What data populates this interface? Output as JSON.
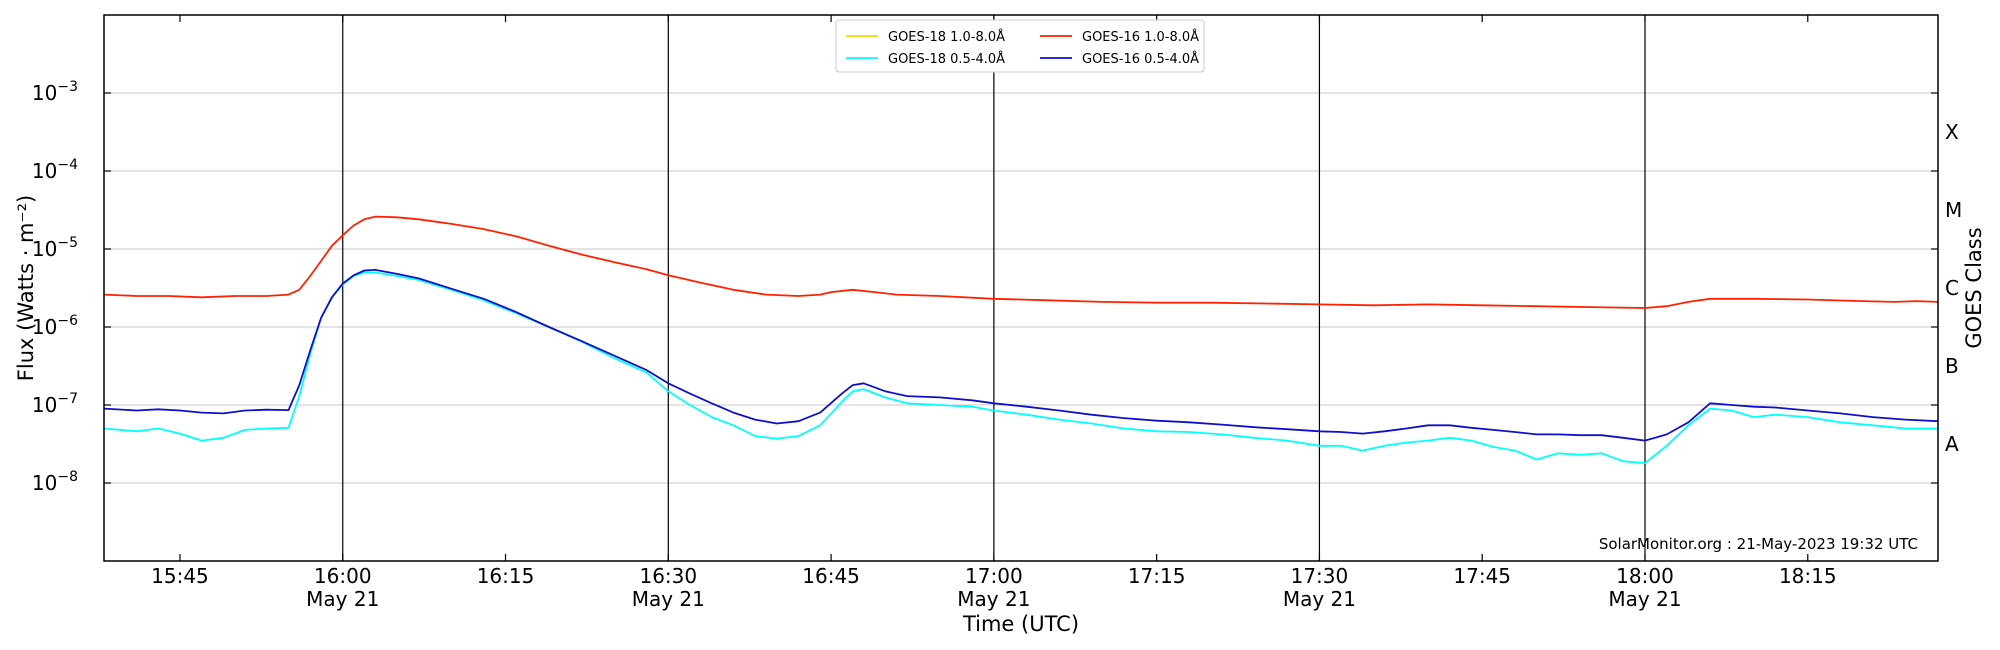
{
  "chart_data": {
    "type": "line",
    "xlabel": "Time (UTC)",
    "ylabel": "Flux (Watts · m⁻²)",
    "right_ylabel": "GOES Class",
    "credit": "SolarMonitor.org : 21-May-2023 19:32 UTC",
    "x_range": [
      "15:38",
      "18:27"
    ],
    "ylim": [
      1e-09,
      0.01
    ],
    "yscale": "log",
    "grid": "horizontal",
    "legend_position": "top-center",
    "x_ticks": [
      {
        "time": "15:45",
        "date": ""
      },
      {
        "time": "16:00",
        "date": "May 21"
      },
      {
        "time": "16:15",
        "date": ""
      },
      {
        "time": "16:30",
        "date": "May 21"
      },
      {
        "time": "16:45",
        "date": ""
      },
      {
        "time": "17:00",
        "date": "May 21"
      },
      {
        "time": "17:15",
        "date": ""
      },
      {
        "time": "17:30",
        "date": "May 21"
      },
      {
        "time": "17:45",
        "date": ""
      },
      {
        "time": "18:00",
        "date": "May 21"
      },
      {
        "time": "18:15",
        "date": ""
      }
    ],
    "vertical_lines": [
      "16:00",
      "16:30",
      "17:00",
      "17:30",
      "18:00"
    ],
    "y_ticks": [
      {
        "base": "10",
        "exp": "−8",
        "value": 1e-08
      },
      {
        "base": "10",
        "exp": "−7",
        "value": 1e-07
      },
      {
        "base": "10",
        "exp": "−6",
        "value": 1e-06
      },
      {
        "base": "10",
        "exp": "−5",
        "value": 1e-05
      },
      {
        "base": "10",
        "exp": "−4",
        "value": 0.0001
      },
      {
        "base": "10",
        "exp": "−3",
        "value": 0.001
      }
    ],
    "goes_classes": [
      {
        "label": "A",
        "value": 3.16e-08
      },
      {
        "label": "B",
        "value": 3.16e-07
      },
      {
        "label": "C",
        "value": 3.16e-06
      },
      {
        "label": "M",
        "value": 3.16e-05
      },
      {
        "label": "X",
        "value": 0.000316
      }
    ],
    "series": [
      {
        "name": "GOES-18 1.0-8.0Å",
        "color": "#ffd700",
        "points": []
      },
      {
        "name": "GOES-18 0.5-4.0Å",
        "color": "#00ffff",
        "points": [
          [
            "15:38",
            5e-08
          ],
          [
            "15:41",
            4.6e-08
          ],
          [
            "15:43",
            5e-08
          ],
          [
            "15:45",
            4.3e-08
          ],
          [
            "15:47",
            3.5e-08
          ],
          [
            "15:49",
            3.8e-08
          ],
          [
            "15:51",
            4.8e-08
          ],
          [
            "15:53",
            5e-08
          ],
          [
            "15:55",
            5.1e-08
          ],
          [
            "15:56",
            1.3e-07
          ],
          [
            "15:57",
            4.5e-07
          ],
          [
            "15:58",
            1.3e-06
          ],
          [
            "15:59",
            2.4e-06
          ],
          [
            "16:00",
            3.5e-06
          ],
          [
            "16:01",
            4.5e-06
          ],
          [
            "16:02",
            5e-06
          ],
          [
            "16:03",
            5e-06
          ],
          [
            "16:05",
            4.5e-06
          ],
          [
            "16:07",
            4e-06
          ],
          [
            "16:10",
            3e-06
          ],
          [
            "16:13",
            2.2e-06
          ],
          [
            "16:16",
            1.5e-06
          ],
          [
            "16:19",
            1e-06
          ],
          [
            "16:22",
            6.5e-07
          ],
          [
            "16:25",
            4e-07
          ],
          [
            "16:28",
            2.6e-07
          ],
          [
            "16:30",
            1.5e-07
          ],
          [
            "16:32",
            1e-07
          ],
          [
            "16:34",
            7e-08
          ],
          [
            "16:36",
            5.5e-08
          ],
          [
            "16:38",
            4e-08
          ],
          [
            "16:40",
            3.7e-08
          ],
          [
            "16:42",
            4e-08
          ],
          [
            "16:44",
            5.5e-08
          ],
          [
            "16:46",
            1.1e-07
          ],
          [
            "16:47",
            1.5e-07
          ],
          [
            "16:48",
            1.6e-07
          ],
          [
            "16:50",
            1.25e-07
          ],
          [
            "16:52",
            1.05e-07
          ],
          [
            "16:55",
            1e-07
          ],
          [
            "16:58",
            9.5e-08
          ],
          [
            "17:00",
            8.5e-08
          ],
          [
            "17:03",
            7.5e-08
          ],
          [
            "17:06",
            6.5e-08
          ],
          [
            "17:09",
            5.8e-08
          ],
          [
            "17:12",
            5e-08
          ],
          [
            "17:15",
            4.6e-08
          ],
          [
            "17:18",
            4.5e-08
          ],
          [
            "17:21",
            4.2e-08
          ],
          [
            "17:24",
            3.8e-08
          ],
          [
            "17:27",
            3.5e-08
          ],
          [
            "17:30",
            3e-08
          ],
          [
            "17:32",
            3e-08
          ],
          [
            "17:34",
            2.6e-08
          ],
          [
            "17:36",
            3e-08
          ],
          [
            "17:38",
            3.3e-08
          ],
          [
            "17:40",
            3.5e-08
          ],
          [
            "17:42",
            3.8e-08
          ],
          [
            "17:44",
            3.5e-08
          ],
          [
            "17:46",
            2.9e-08
          ],
          [
            "17:48",
            2.6e-08
          ],
          [
            "17:50",
            2e-08
          ],
          [
            "17:52",
            2.4e-08
          ],
          [
            "17:54",
            2.3e-08
          ],
          [
            "17:56",
            2.4e-08
          ],
          [
            "17:58",
            1.9e-08
          ],
          [
            "18:00",
            1.8e-08
          ],
          [
            "18:02",
            3e-08
          ],
          [
            "18:04",
            5.5e-08
          ],
          [
            "18:06",
            9e-08
          ],
          [
            "18:08",
            8.5e-08
          ],
          [
            "18:10",
            7e-08
          ],
          [
            "18:12",
            7.5e-08
          ],
          [
            "18:15",
            7e-08
          ],
          [
            "18:18",
            6e-08
          ],
          [
            "18:21",
            5.5e-08
          ],
          [
            "18:24",
            5e-08
          ],
          [
            "18:27",
            5e-08
          ]
        ]
      },
      {
        "name": "GOES-16 1.0-8.0Å",
        "color": "#ff2200",
        "points": [
          [
            "15:38",
            2.6e-06
          ],
          [
            "15:41",
            2.5e-06
          ],
          [
            "15:44",
            2.5e-06
          ],
          [
            "15:47",
            2.4e-06
          ],
          [
            "15:50",
            2.5e-06
          ],
          [
            "15:53",
            2.5e-06
          ],
          [
            "15:55",
            2.6e-06
          ],
          [
            "15:56",
            3e-06
          ],
          [
            "15:57",
            4.5e-06
          ],
          [
            "15:58",
            7e-06
          ],
          [
            "15:59",
            1.1e-05
          ],
          [
            "16:00",
            1.5e-05
          ],
          [
            "16:01",
            2e-05
          ],
          [
            "16:02",
            2.4e-05
          ],
          [
            "16:03",
            2.6e-05
          ],
          [
            "16:05",
            2.55e-05
          ],
          [
            "16:07",
            2.4e-05
          ],
          [
            "16:10",
            2.1e-05
          ],
          [
            "16:13",
            1.8e-05
          ],
          [
            "16:16",
            1.45e-05
          ],
          [
            "16:19",
            1.1e-05
          ],
          [
            "16:22",
            8.5e-06
          ],
          [
            "16:25",
            6.8e-06
          ],
          [
            "16:28",
            5.5e-06
          ],
          [
            "16:30",
            4.6e-06
          ],
          [
            "16:33",
            3.7e-06
          ],
          [
            "16:36",
            3e-06
          ],
          [
            "16:39",
            2.6e-06
          ],
          [
            "16:42",
            2.5e-06
          ],
          [
            "16:44",
            2.6e-06
          ],
          [
            "16:45",
            2.8e-06
          ],
          [
            "16:47",
            3e-06
          ],
          [
            "16:49",
            2.8e-06
          ],
          [
            "16:51",
            2.6e-06
          ],
          [
            "16:55",
            2.5e-06
          ],
          [
            "17:00",
            2.3e-06
          ],
          [
            "17:05",
            2.2e-06
          ],
          [
            "17:10",
            2.1e-06
          ],
          [
            "17:15",
            2.05e-06
          ],
          [
            "17:20",
            2.05e-06
          ],
          [
            "17:25",
            2e-06
          ],
          [
            "17:30",
            1.95e-06
          ],
          [
            "17:35",
            1.9e-06
          ],
          [
            "17:40",
            1.95e-06
          ],
          [
            "17:45",
            1.9e-06
          ],
          [
            "17:50",
            1.85e-06
          ],
          [
            "17:55",
            1.8e-06
          ],
          [
            "18:00",
            1.75e-06
          ],
          [
            "18:02",
            1.85e-06
          ],
          [
            "18:04",
            2.1e-06
          ],
          [
            "18:06",
            2.3e-06
          ],
          [
            "18:10",
            2.3e-06
          ],
          [
            "18:15",
            2.25e-06
          ],
          [
            "18:20",
            2.15e-06
          ],
          [
            "18:23",
            2.1e-06
          ],
          [
            "18:25",
            2.15e-06
          ],
          [
            "18:27",
            2.1e-06
          ]
        ]
      },
      {
        "name": "GOES-16 0.5-4.0Å",
        "color": "#1010cc",
        "points": [
          [
            "15:38",
            9e-08
          ],
          [
            "15:41",
            8.5e-08
          ],
          [
            "15:43",
            8.8e-08
          ],
          [
            "15:45",
            8.5e-08
          ],
          [
            "15:47",
            8e-08
          ],
          [
            "15:49",
            7.8e-08
          ],
          [
            "15:51",
            8.5e-08
          ],
          [
            "15:53",
            8.7e-08
          ],
          [
            "15:55",
            8.6e-08
          ],
          [
            "15:56",
            1.8e-07
          ],
          [
            "15:57",
            5e-07
          ],
          [
            "15:58",
            1.3e-06
          ],
          [
            "15:59",
            2.4e-06
          ],
          [
            "16:00",
            3.6e-06
          ],
          [
            "16:01",
            4.6e-06
          ],
          [
            "16:02",
            5.3e-06
          ],
          [
            "16:03",
            5.4e-06
          ],
          [
            "16:05",
            4.8e-06
          ],
          [
            "16:07",
            4.2e-06
          ],
          [
            "16:10",
            3.1e-06
          ],
          [
            "16:13",
            2.3e-06
          ],
          [
            "16:16",
            1.55e-06
          ],
          [
            "16:19",
            1e-06
          ],
          [
            "16:22",
            6.6e-07
          ],
          [
            "16:25",
            4.3e-07
          ],
          [
            "16:28",
            2.8e-07
          ],
          [
            "16:30",
            1.9e-07
          ],
          [
            "16:32",
            1.4e-07
          ],
          [
            "16:34",
            1.05e-07
          ],
          [
            "16:36",
            8e-08
          ],
          [
            "16:38",
            6.5e-08
          ],
          [
            "16:40",
            5.8e-08
          ],
          [
            "16:42",
            6.2e-08
          ],
          [
            "16:44",
            8e-08
          ],
          [
            "16:46",
            1.4e-07
          ],
          [
            "16:47",
            1.8e-07
          ],
          [
            "16:48",
            1.9e-07
          ],
          [
            "16:50",
            1.5e-07
          ],
          [
            "16:52",
            1.3e-07
          ],
          [
            "16:55",
            1.25e-07
          ],
          [
            "16:58",
            1.15e-07
          ],
          [
            "17:00",
            1.05e-07
          ],
          [
            "17:03",
            9.5e-08
          ],
          [
            "17:06",
            8.5e-08
          ],
          [
            "17:09",
            7.5e-08
          ],
          [
            "17:12",
            6.8e-08
          ],
          [
            "17:15",
            6.3e-08
          ],
          [
            "17:18",
            6e-08
          ],
          [
            "17:21",
            5.6e-08
          ],
          [
            "17:24",
            5.2e-08
          ],
          [
            "17:27",
            4.9e-08
          ],
          [
            "17:30",
            4.6e-08
          ],
          [
            "17:32",
            4.5e-08
          ],
          [
            "17:34",
            4.3e-08
          ],
          [
            "17:36",
            4.6e-08
          ],
          [
            "17:38",
            5e-08
          ],
          [
            "17:40",
            5.5e-08
          ],
          [
            "17:42",
            5.5e-08
          ],
          [
            "17:44",
            5.1e-08
          ],
          [
            "17:46",
            4.8e-08
          ],
          [
            "17:48",
            4.5e-08
          ],
          [
            "17:50",
            4.2e-08
          ],
          [
            "17:52",
            4.2e-08
          ],
          [
            "17:54",
            4.1e-08
          ],
          [
            "17:56",
            4.1e-08
          ],
          [
            "17:58",
            3.8e-08
          ],
          [
            "18:00",
            3.5e-08
          ],
          [
            "18:02",
            4.2e-08
          ],
          [
            "18:04",
            6e-08
          ],
          [
            "18:06",
            1.05e-07
          ],
          [
            "18:08",
            1e-07
          ],
          [
            "18:10",
            9.5e-08
          ],
          [
            "18:12",
            9.3e-08
          ],
          [
            "18:15",
            8.5e-08
          ],
          [
            "18:18",
            7.8e-08
          ],
          [
            "18:21",
            7e-08
          ],
          [
            "18:24",
            6.5e-08
          ],
          [
            "18:27",
            6.2e-08
          ]
        ]
      }
    ]
  }
}
